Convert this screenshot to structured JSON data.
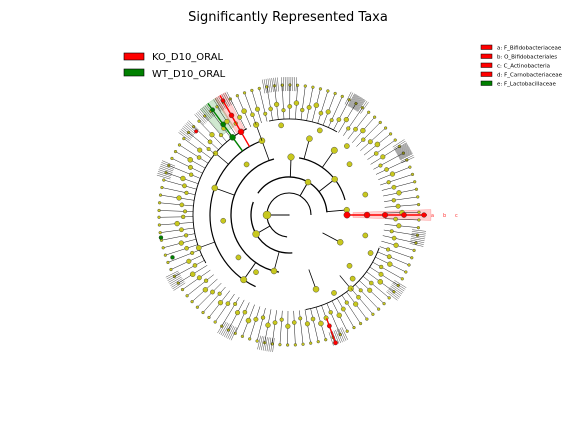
{
  "figure": {
    "title": "Significantly Represented Taxa"
  },
  "legend": {
    "entries": [
      {
        "label": "KO_D10_ORAL",
        "color": "#ff0000"
      },
      {
        "label": "WT_D10_ORAL",
        "color": "#008000"
      }
    ]
  },
  "key": {
    "entries": [
      {
        "label": "a: F_Bifidobacteriaceae",
        "color": "#ff0000"
      },
      {
        "label": "b: O_Bifidobacteriales",
        "color": "#ff0000"
      },
      {
        "label": "c: C_Actinobacteria",
        "color": "#ff0000"
      },
      {
        "label": "d: F_Carnobacteriaceae",
        "color": "#ff0000"
      },
      {
        "label": "e: F_Lactobacillaceae",
        "color": "#008000"
      }
    ]
  },
  "cladogram": {
    "branch_letters": [
      "a",
      "b",
      "c"
    ],
    "node_color": "#c8c81e",
    "ko_color": "#ff0000",
    "wt_color": "#008000"
  }
}
